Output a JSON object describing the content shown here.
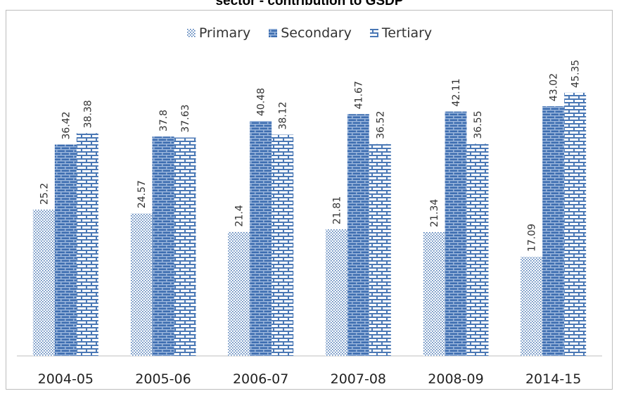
{
  "chart_data": {
    "type": "bar",
    "title": "sector - contribution to GSDP",
    "categories": [
      "2004-05",
      "2005-06",
      "2006-07",
      "2007-08",
      "2008-09",
      "2014-15"
    ],
    "series": [
      {
        "name": "Primary",
        "values": [
          25.2,
          24.57,
          21.4,
          21.81,
          21.34,
          17.09
        ],
        "pattern": "dots"
      },
      {
        "name": "Secondary",
        "values": [
          36.42,
          37.8,
          40.48,
          41.67,
          42.11,
          43.02
        ],
        "pattern": "dense-bricks"
      },
      {
        "name": "Tertiary",
        "values": [
          38.38,
          37.63,
          38.12,
          36.52,
          36.55,
          45.35
        ],
        "pattern": "bricks"
      }
    ],
    "ylim": [
      0,
      50
    ],
    "grid": false,
    "legend_position": "top",
    "colors": {
      "primary": "#4a78b5",
      "secondary": "#3d6db0",
      "tertiary": "#4a78b5"
    }
  }
}
